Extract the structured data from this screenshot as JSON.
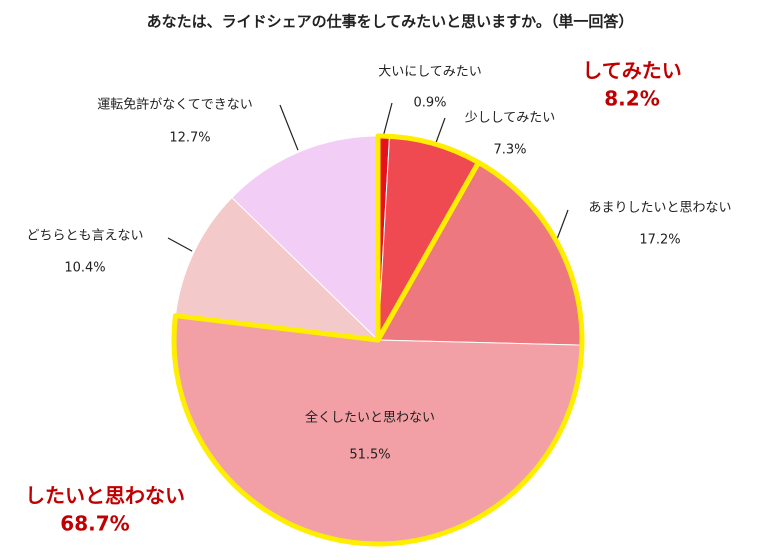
{
  "chart_data": {
    "type": "pie",
    "title": "あなたは、ライドシェアの仕事をしてみたいと思いますか。（単一回答）",
    "categories": [
      "大いにしてみたい",
      "少ししてみたい",
      "あまりしたいと思わない",
      "全くしたいと思わない",
      "どちらとも言えない",
      "運転免許がなくてできない"
    ],
    "values": [
      0.9,
      7.3,
      17.2,
      51.5,
      10.4,
      12.7
    ],
    "value_labels": [
      "0.9%",
      "7.3%",
      "17.2%",
      "51.5%",
      "10.4%",
      "12.7%"
    ],
    "colors": [
      "#e3121c",
      "#ef4a52",
      "#ee7880",
      "#f2a0a5",
      "#f4c9c9",
      "#f2cdf5"
    ],
    "groups": {
      "names": [
        "してみたい",
        "したいと思わない"
      ],
      "values": [
        8.2,
        68.7
      ],
      "value_labels": [
        "8.2%",
        "68.7%"
      ],
      "color": "#c00000",
      "outline": "#ffee00"
    }
  }
}
